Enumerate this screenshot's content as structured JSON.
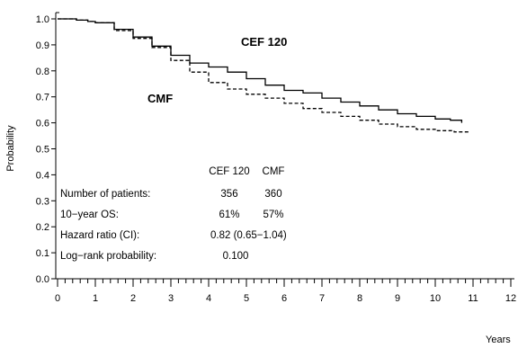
{
  "chart_data": {
    "type": "line",
    "title": "",
    "xlabel": "Years",
    "ylabel": "Probability",
    "xlim": [
      0,
      12
    ],
    "ylim": [
      0,
      1.0
    ],
    "x_ticks": [
      0,
      1,
      2,
      3,
      4,
      5,
      6,
      7,
      8,
      9,
      10,
      11,
      12
    ],
    "x_tick_labels": [
      "0",
      "1",
      "2",
      "3",
      "4",
      "5",
      "6",
      "7",
      "8",
      "9",
      "10",
      "11",
      "12"
    ],
    "y_ticks": [
      0,
      0.1,
      0.2,
      0.3,
      0.4,
      0.5,
      0.6,
      0.7,
      0.8,
      0.9,
      1.0
    ],
    "y_tick_labels": [
      "0.0",
      "0.1",
      "0.2",
      "0.3",
      "0.4",
      "0.5",
      "0.6",
      "0.7",
      "0.8",
      "0.9",
      "1.0"
    ],
    "grid": false,
    "series": [
      {
        "name": "CEF 120",
        "line_style": "solid",
        "color": "#000000",
        "x": [
          0,
          0.5,
          0.8,
          1.0,
          1.5,
          2.0,
          2.5,
          3.0,
          3.5,
          4.0,
          4.5,
          5.0,
          5.5,
          6.0,
          6.5,
          7.0,
          7.5,
          8.0,
          8.5,
          9.0,
          9.5,
          10.0,
          10.4,
          10.7
        ],
        "y": [
          1.0,
          0.995,
          0.99,
          0.985,
          0.96,
          0.93,
          0.895,
          0.86,
          0.83,
          0.815,
          0.795,
          0.77,
          0.745,
          0.725,
          0.715,
          0.695,
          0.68,
          0.665,
          0.65,
          0.635,
          0.625,
          0.615,
          0.61,
          0.6
        ]
      },
      {
        "name": "CMF",
        "line_style": "dashed",
        "color": "#000000",
        "x": [
          0,
          0.5,
          0.8,
          1.0,
          1.5,
          2.0,
          2.5,
          3.0,
          3.5,
          4.0,
          4.5,
          5.0,
          5.5,
          6.0,
          6.5,
          7.0,
          7.5,
          8.0,
          8.5,
          9.0,
          9.5,
          10.0,
          10.5,
          10.9
        ],
        "y": [
          1.0,
          0.995,
          0.99,
          0.985,
          0.955,
          0.925,
          0.89,
          0.84,
          0.795,
          0.755,
          0.73,
          0.71,
          0.695,
          0.675,
          0.655,
          0.64,
          0.625,
          0.61,
          0.595,
          0.585,
          0.575,
          0.57,
          0.565,
          0.56
        ]
      }
    ],
    "stats": {
      "header": [
        "CEF 120",
        "CMF"
      ],
      "rows": [
        {
          "label": "Number of patients:",
          "col1": "356",
          "col2": "360"
        },
        {
          "label": "10−year OS:",
          "col1": "61%",
          "col2": "57%"
        },
        {
          "label": "Hazard ratio (CI):",
          "col1": "0.82 (0.65−1.04)",
          "col2": ""
        },
        {
          "label": "Log−rank probability:",
          "col1": "0.100",
          "col2": ""
        }
      ]
    }
  }
}
